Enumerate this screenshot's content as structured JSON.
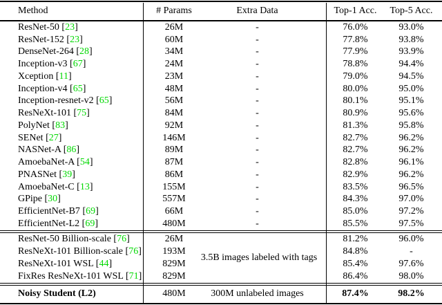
{
  "colors": {
    "citation_green": "#00d800",
    "rule_black": "#000000",
    "background": "#ffffff"
  },
  "table": {
    "columns": [
      {
        "key": "method",
        "label": "Method"
      },
      {
        "key": "params",
        "label": "# Params"
      },
      {
        "key": "extra",
        "label": "Extra Data"
      },
      {
        "key": "top1",
        "label": "Top-1 Acc."
      },
      {
        "key": "top5",
        "label": "Top-5 Acc."
      }
    ],
    "sections": [
      {
        "name": "imagenet-baselines",
        "rows": [
          {
            "method": "ResNet-50",
            "cite": "23",
            "params": "26M",
            "extra": "-",
            "top1": "76.0%",
            "top5": "93.0%"
          },
          {
            "method": "ResNet-152",
            "cite": "23",
            "params": "60M",
            "extra": "-",
            "top1": "77.8%",
            "top5": "93.8%"
          },
          {
            "method": "DenseNet-264",
            "cite": "28",
            "params": "34M",
            "extra": "-",
            "top1": "77.9%",
            "top5": "93.9%"
          },
          {
            "method": "Inception-v3",
            "cite": "67",
            "params": "24M",
            "extra": "-",
            "top1": "78.8%",
            "top5": "94.4%"
          },
          {
            "method": "Xception",
            "cite": "11",
            "params": "23M",
            "extra": "-",
            "top1": "79.0%",
            "top5": "94.5%"
          },
          {
            "method": "Inception-v4",
            "cite": "65",
            "params": "48M",
            "extra": "-",
            "top1": "80.0%",
            "top5": "95.0%"
          },
          {
            "method": "Inception-resnet-v2",
            "cite": "65",
            "params": "56M",
            "extra": "-",
            "top1": "80.1%",
            "top5": "95.1%"
          },
          {
            "method": "ResNeXt-101",
            "cite": "75",
            "params": "84M",
            "extra": "-",
            "top1": "80.9%",
            "top5": "95.6%"
          },
          {
            "method": "PolyNet",
            "cite": "83",
            "params": "92M",
            "extra": "-",
            "top1": "81.3%",
            "top5": "95.8%"
          },
          {
            "method": "SENet",
            "cite": "27",
            "params": "146M",
            "extra": "-",
            "top1": "82.7%",
            "top5": "96.2%"
          },
          {
            "method": "NASNet-A",
            "cite": "86",
            "params": "89M",
            "extra": "-",
            "top1": "82.7%",
            "top5": "96.2%"
          },
          {
            "method": "AmoebaNet-A",
            "cite": "54",
            "params": "87M",
            "extra": "-",
            "top1": "82.8%",
            "top5": "96.1%"
          },
          {
            "method": "PNASNet",
            "cite": "39",
            "params": "86M",
            "extra": "-",
            "top1": "82.9%",
            "top5": "96.2%"
          },
          {
            "method": "AmoebaNet-C",
            "cite": "13",
            "params": "155M",
            "extra": "-",
            "top1": "83.5%",
            "top5": "96.5%"
          },
          {
            "method": "GPipe",
            "cite": "30",
            "params": "557M",
            "extra": "-",
            "top1": "84.3%",
            "top5": "97.0%"
          },
          {
            "method": "EfficientNet-B7",
            "cite": "69",
            "params": "66M",
            "extra": "-",
            "top1": "85.0%",
            "top5": "97.2%"
          },
          {
            "method": "EfficientNet-L2",
            "cite": "69",
            "params": "480M",
            "extra": "-",
            "top1": "85.5%",
            "top5": "97.5%"
          }
        ]
      },
      {
        "name": "extra-data-baselines",
        "shared_extra": "3.5B images labeled with tags",
        "rows": [
          {
            "method": "ResNet-50 Billion-scale",
            "cite": "76",
            "params": "26M",
            "extra": "",
            "top1": "81.2%",
            "top5": "96.0%"
          },
          {
            "method": "ResNeXt-101 Billion-scale",
            "cite": "76",
            "params": "193M",
            "extra": "",
            "top1": "84.8%",
            "top5": "-"
          },
          {
            "method": "ResNeXt-101 WSL",
            "cite": "44",
            "params": "829M",
            "extra": "",
            "top1": "85.4%",
            "top5": "97.6%"
          },
          {
            "method": "FixRes ResNeXt-101 WSL",
            "cite": "71",
            "params": "829M",
            "extra": "",
            "top1": "86.4%",
            "top5": "98.0%"
          }
        ]
      },
      {
        "name": "noisy-student",
        "rows": [
          {
            "method": "Noisy Student (L2)",
            "params": "480M",
            "extra": "300M unlabeled images",
            "top1": "87.4%",
            "top5": "98.2%",
            "bold": true
          }
        ]
      }
    ]
  }
}
